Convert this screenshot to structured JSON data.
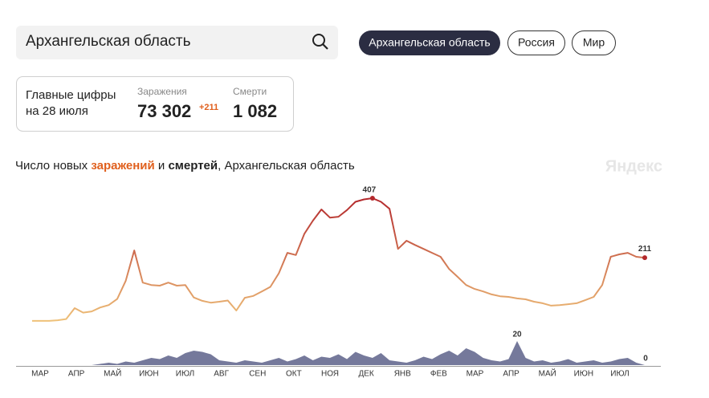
{
  "search": {
    "query": "Архангельская область"
  },
  "regions": [
    "Архангельская область",
    "Россия",
    "Мир"
  ],
  "summary": {
    "title_lines": [
      "Главные цифры",
      "на 28 июля"
    ],
    "cases": {
      "label": "Заражения",
      "value": "73 302",
      "delta": "+211"
    },
    "deaths": {
      "label": "Смерти",
      "value": "1 082"
    }
  },
  "watermark": "Яндекс",
  "chart_data": {
    "type": "line",
    "title_parts": [
      "Число новых ",
      " и ",
      ", Архангельская область"
    ],
    "month_labels": [
      "МАР",
      "АПР",
      "МАЙ",
      "ИЮН",
      "ИЮЛ",
      "АВГ",
      "СЕН",
      "ОКТ",
      "НОЯ",
      "ДЕК",
      "ЯНВ",
      "ФЕВ",
      "МАР",
      "АПР",
      "МАЙ",
      "ИЮН",
      "ИЮЛ"
    ],
    "series": [
      {
        "name": "заражений",
        "colors": [
          "#efc27a",
          "#b3282c"
        ],
        "values": [
          3,
          3,
          3,
          5,
          9,
          45,
          30,
          34,
          47,
          55,
          75,
          135,
          235,
          129,
          121,
          119,
          129,
          119,
          121,
          80,
          69,
          63,
          66,
          70,
          37,
          79,
          85,
          100,
          115,
          160,
          227,
          220,
          290,
          333,
          370,
          343,
          346,
          368,
          395,
          403,
          407,
          395,
          372,
          240,
          267,
          253,
          240,
          227,
          214,
          174,
          148,
          121,
          108,
          100,
          90,
          84,
          82,
          77,
          74,
          66,
          61,
          53,
          55,
          58,
          61,
          71,
          82,
          121,
          214,
          222,
          227,
          214,
          211
        ]
      },
      {
        "name": "смертей",
        "color": "#5d6189",
        "values": [
          0,
          0,
          0,
          0,
          0,
          0,
          0,
          0,
          1,
          2,
          1,
          3,
          2,
          4,
          6,
          5,
          8,
          6,
          10,
          12,
          11,
          9,
          4,
          3,
          2,
          4,
          3,
          2,
          4,
          6,
          3,
          5,
          8,
          4,
          7,
          6,
          9,
          5,
          11,
          8,
          6,
          10,
          4,
          3,
          2,
          4,
          7,
          5,
          9,
          12,
          8,
          14,
          11,
          6,
          4,
          3,
          5,
          20,
          6,
          3,
          4,
          2,
          3,
          5,
          2,
          3,
          4,
          2,
          3,
          5,
          6,
          2,
          0
        ]
      }
    ]
  }
}
